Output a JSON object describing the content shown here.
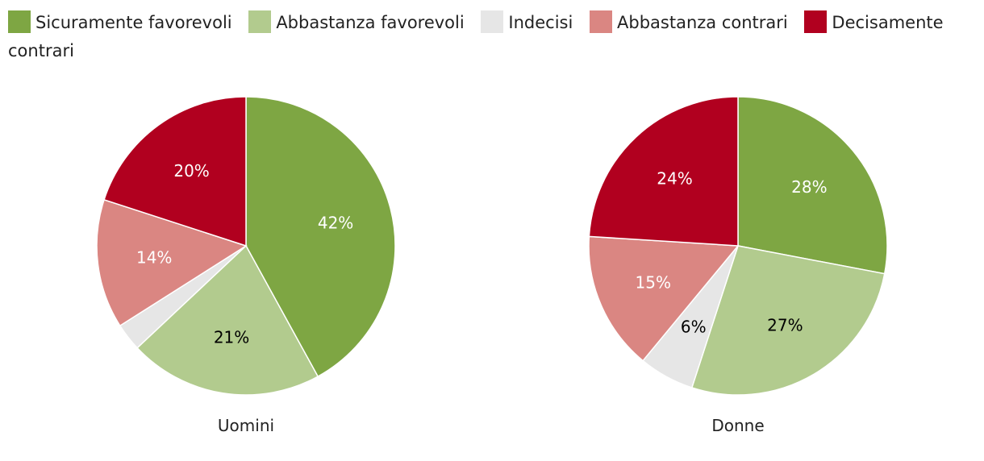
{
  "chart_data": [
    {
      "type": "pie",
      "title": "Uomini",
      "slices": [
        {
          "label": "Sicuramente favorevoli",
          "value": 42,
          "value_label": "42%"
        },
        {
          "label": "Abbastanza favorevoli",
          "value": 21,
          "value_label": "21%"
        },
        {
          "label": "Indecisi",
          "value": 3,
          "value_label": ""
        },
        {
          "label": "Abbastanza contrari",
          "value": 14,
          "value_label": "14%"
        },
        {
          "label": "Decisamente contrari",
          "value": 20,
          "value_label": "20%"
        }
      ]
    },
    {
      "type": "pie",
      "title": "Donne",
      "slices": [
        {
          "label": "Sicuramente favorevoli",
          "value": 28,
          "value_label": "28%"
        },
        {
          "label": "Abbastanza favorevoli",
          "value": 27,
          "value_label": "27%"
        },
        {
          "label": "Indecisi",
          "value": 6,
          "value_label": "6%"
        },
        {
          "label": "Abbastanza contrari",
          "value": 15,
          "value_label": "15%"
        },
        {
          "label": "Decisamente contrari",
          "value": 24,
          "value_label": "24%"
        }
      ]
    }
  ],
  "legend": {
    "placement": "top-left",
    "items": [
      {
        "label": "Sicuramente favorevoli",
        "color": "#7ea643",
        "label_color": "#ffffff"
      },
      {
        "label": "Abbastanza favorevoli",
        "color": "#b2cb8e",
        "label_color": "#000000"
      },
      {
        "label": "Indecisi",
        "color": "#e6e6e6",
        "label_color": "#000000"
      },
      {
        "label": "Abbastanza contrari",
        "color": "#da8682",
        "label_color": "#ffffff"
      },
      {
        "label": "Decisamente contrari",
        "color": "#b1001f",
        "label_color": "#ffffff"
      }
    ]
  }
}
